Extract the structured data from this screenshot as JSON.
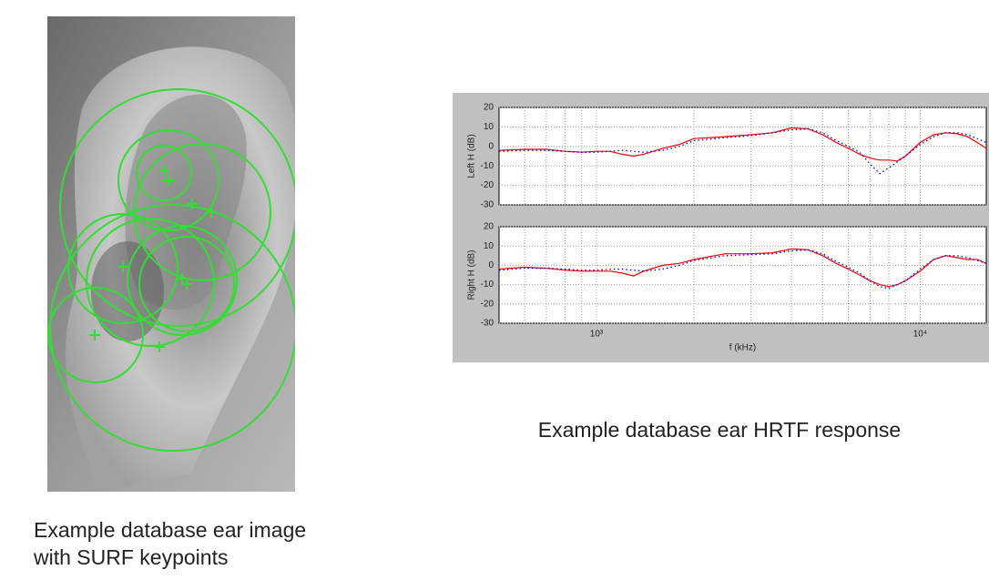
{
  "captions": {
    "image": [
      "Example database ear image",
      "with SURF keypoints"
    ],
    "chart": "Example database ear HRTF response"
  },
  "chart_data": [
    {
      "type": "line",
      "ylabel": "Left H (dB)",
      "xlog": true,
      "grid": true,
      "xlim": [
        500,
        16000
      ],
      "xticks": [
        {
          "value": 1000,
          "label": "10³"
        },
        {
          "value": 10000,
          "label": "10⁴"
        }
      ],
      "xminor": [
        600,
        700,
        800,
        900,
        2000,
        3000,
        4000,
        5000,
        6000,
        7000,
        8000,
        9000
      ],
      "ylim": [
        -30,
        20
      ],
      "yticks": [
        -30,
        -20,
        -10,
        0,
        10,
        20
      ],
      "x": [
        500,
        600,
        700,
        800,
        900,
        1000,
        1100,
        1200,
        1300,
        1400,
        1600,
        1800,
        2000,
        2500,
        3000,
        3500,
        4000,
        4500,
        5000,
        5500,
        6000,
        6500,
        7000,
        7500,
        8000,
        8500,
        9000,
        10000,
        11000,
        12000,
        13000,
        14000,
        15000,
        16000
      ],
      "series": [
        {
          "color": "#ff0000",
          "linestyle": "solid",
          "values": [
            -2,
            -1.5,
            -1.5,
            -2.5,
            -3,
            -2.5,
            -2.5,
            -4,
            -5,
            -4,
            -1,
            1,
            4,
            5,
            6,
            7,
            9.5,
            9,
            6,
            2,
            -1,
            -4,
            -6,
            -7,
            -7,
            -7.5,
            -5,
            2,
            6,
            7,
            6.5,
            5,
            2,
            -1
          ]
        },
        {
          "color": "#0000ff",
          "linestyle": "dotted",
          "values": [
            -2.5,
            -2,
            -2,
            -2.5,
            -3,
            -3,
            -2.5,
            -2,
            -2.5,
            -3,
            -2,
            0,
            3,
            4.5,
            5.5,
            7,
            8.5,
            9,
            7,
            3,
            0,
            -3,
            -9,
            -14,
            -11,
            -8,
            -5,
            1,
            5,
            7,
            7,
            6,
            4,
            2
          ]
        }
      ]
    },
    {
      "type": "line",
      "ylabel": "Right H (dB)",
      "xlabel": "f (kHz)",
      "xlog": true,
      "grid": true,
      "xlim": [
        500,
        16000
      ],
      "xticks": [
        {
          "value": 1000,
          "label": "10³"
        },
        {
          "value": 10000,
          "label": "10⁴"
        }
      ],
      "xminor": [
        600,
        700,
        800,
        900,
        2000,
        3000,
        4000,
        5000,
        6000,
        7000,
        8000,
        9000
      ],
      "ylim": [
        -30,
        20
      ],
      "yticks": [
        -30,
        -20,
        -10,
        0,
        10,
        20
      ],
      "x": [
        500,
        600,
        700,
        800,
        900,
        1000,
        1100,
        1200,
        1300,
        1400,
        1600,
        1800,
        2000,
        2500,
        3000,
        3500,
        4000,
        4500,
        5000,
        5500,
        6000,
        6500,
        7000,
        7500,
        8000,
        8500,
        9000,
        10000,
        11000,
        12000,
        13000,
        14000,
        15000,
        16000
      ],
      "series": [
        {
          "color": "#ff0000",
          "linestyle": "solid",
          "values": [
            -2,
            -1,
            -1.5,
            -2.5,
            -3,
            -3,
            -3,
            -4,
            -5.5,
            -3,
            0,
            1,
            3,
            6,
            6,
            6.5,
            8.5,
            8,
            5,
            1,
            -2,
            -5,
            -8,
            -10,
            -11,
            -10,
            -8,
            -3,
            3,
            5,
            4,
            3,
            3,
            1
          ]
        },
        {
          "color": "#0000ff",
          "linestyle": "dotted",
          "values": [
            -2.5,
            -1.5,
            -1.5,
            -2,
            -2.5,
            -2.5,
            -2,
            -2,
            -2.5,
            -3,
            -2,
            0,
            2.5,
            5,
            5.5,
            6,
            7.5,
            8,
            6,
            2,
            -1,
            -4,
            -8,
            -11,
            -12,
            -10,
            -8,
            -2,
            3,
            5,
            5,
            4,
            2.5,
            1
          ]
        }
      ]
    }
  ]
}
